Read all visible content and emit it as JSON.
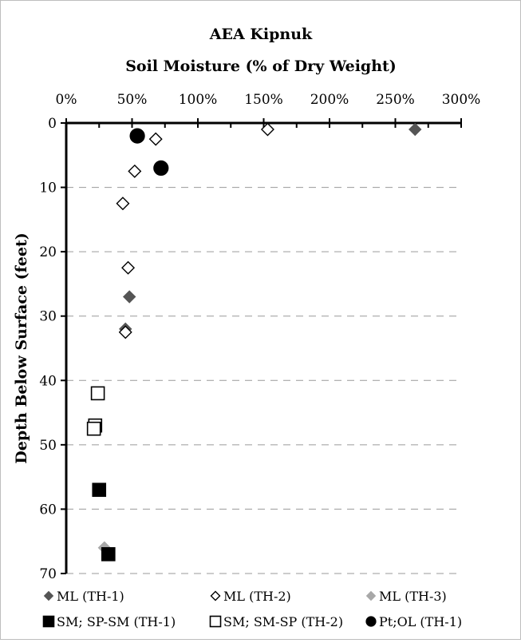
{
  "chart_data": {
    "type": "scatter",
    "title": "AEA Kipnuk",
    "xlabel": "Soil Moisture (% of Dry Weight)",
    "ylabel": "Depth Below Surface (feet)",
    "xlim": [
      0,
      300
    ],
    "ylim": [
      0,
      70
    ],
    "y_inverted": true,
    "x_axis_position": "top",
    "x_ticks": [
      "0%",
      "50%",
      "100%",
      "150%",
      "200%",
      "250%",
      "300%"
    ],
    "y_ticks": [
      "0",
      "10",
      "20",
      "30",
      "40",
      "50",
      "60",
      "70"
    ],
    "grid": "horizontal dashed",
    "legend_position": "bottom",
    "series": [
      {
        "name": "ML (TH-1)",
        "marker": "diamond",
        "color": "#555555",
        "filled": true,
        "points": [
          {
            "x": 265,
            "y": 1
          },
          {
            "x": 48,
            "y": 27
          },
          {
            "x": 45,
            "y": 32
          }
        ]
      },
      {
        "name": "ML (TH-2)",
        "marker": "diamond",
        "color": "#000000",
        "filled": false,
        "points": [
          {
            "x": 153,
            "y": 1
          },
          {
            "x": 68,
            "y": 2.5
          },
          {
            "x": 52,
            "y": 7.5
          },
          {
            "x": 43,
            "y": 12.5
          },
          {
            "x": 47,
            "y": 22.5
          },
          {
            "x": 45,
            "y": 32.5
          }
        ]
      },
      {
        "name": "ML (TH-3)",
        "marker": "diamond",
        "color": "#a8a8a8",
        "filled": true,
        "points": [
          {
            "x": 29,
            "y": 66
          }
        ]
      },
      {
        "name": "SM; SP-SM (TH-1)",
        "marker": "square",
        "color": "#000000",
        "filled": true,
        "points": [
          {
            "x": 25,
            "y": 57
          },
          {
            "x": 32,
            "y": 67
          }
        ]
      },
      {
        "name": "SM; SM-SP (TH-2)",
        "marker": "square",
        "color": "#000000",
        "filled": false,
        "points": [
          {
            "x": 24,
            "y": 42
          },
          {
            "x": 22,
            "y": 47
          },
          {
            "x": 21,
            "y": 47.5
          }
        ]
      },
      {
        "name": "Pt;OL (TH-1)",
        "marker": "circle",
        "color": "#000000",
        "filled": true,
        "points": [
          {
            "x": 54,
            "y": 2
          },
          {
            "x": 72,
            "y": 7
          }
        ]
      }
    ]
  }
}
